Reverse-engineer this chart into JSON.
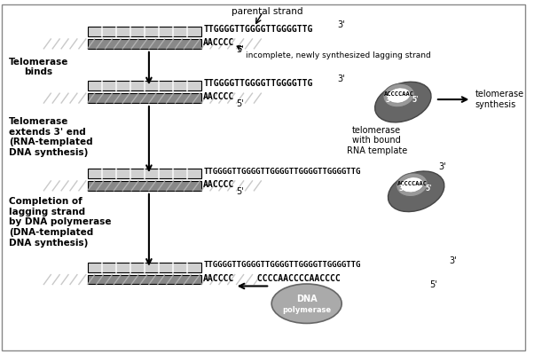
{
  "bg_color": "#f0f0f0",
  "title": "",
  "parental_strand_label": "parental strand",
  "incomplete_label": "incomplete, newly synthesized lagging strand",
  "step1_top_seq": "TTGGGGTTGGGGTTGGGGTTG",
  "step1_bot_seq": "AACCCC",
  "step1_3prime_top": "3'",
  "step1_5prime_bot": "5'",
  "step2_top_seq": "TTGGGGTTGGGGTTGGGGTTG",
  "step2_bot_seq": "AACCCC",
  "step2_telomerase_seq": "ACCCCAAC",
  "step2_3prime": "3'",
  "step2_5prime": "5'",
  "step3_top_seq": "TTGGGGTTGGGGTTGGGGTTGGGGTTGGGGTTG",
  "step3_bot_seq": "AACCCC",
  "step3_telomerase_seq": "ACCCCAAC",
  "step4_top_seq": "TTGGGGTTGGGGTTGGGGTTGGGGTTGGGGTTG",
  "step4_bot_seq": "AACCCC",
  "step4_ext_seq": "CCCCAACCCCAACCCC",
  "left_label1": "Telomerase\nbinds",
  "left_label2": "Telomerase\nextends 3' end\n(RNA-templated\nDNA synthesis)",
  "left_label3": "Completion of\nlagging strand\nby DNA polymerase\n(DNA-templated\nDNA synthesis)",
  "right_label1": "telomerase\nsynthesis",
  "right_label2": "telomerase\nwith bound\nRNA template",
  "telomerase_body_color": "#7a7a7a",
  "telomerase_head_color": "#a0a0a0",
  "dna_poly_color": "#888888",
  "bar_light_color": "#c8c8c8",
  "bar_dark_color": "#888888",
  "arrow_color": "#000000"
}
